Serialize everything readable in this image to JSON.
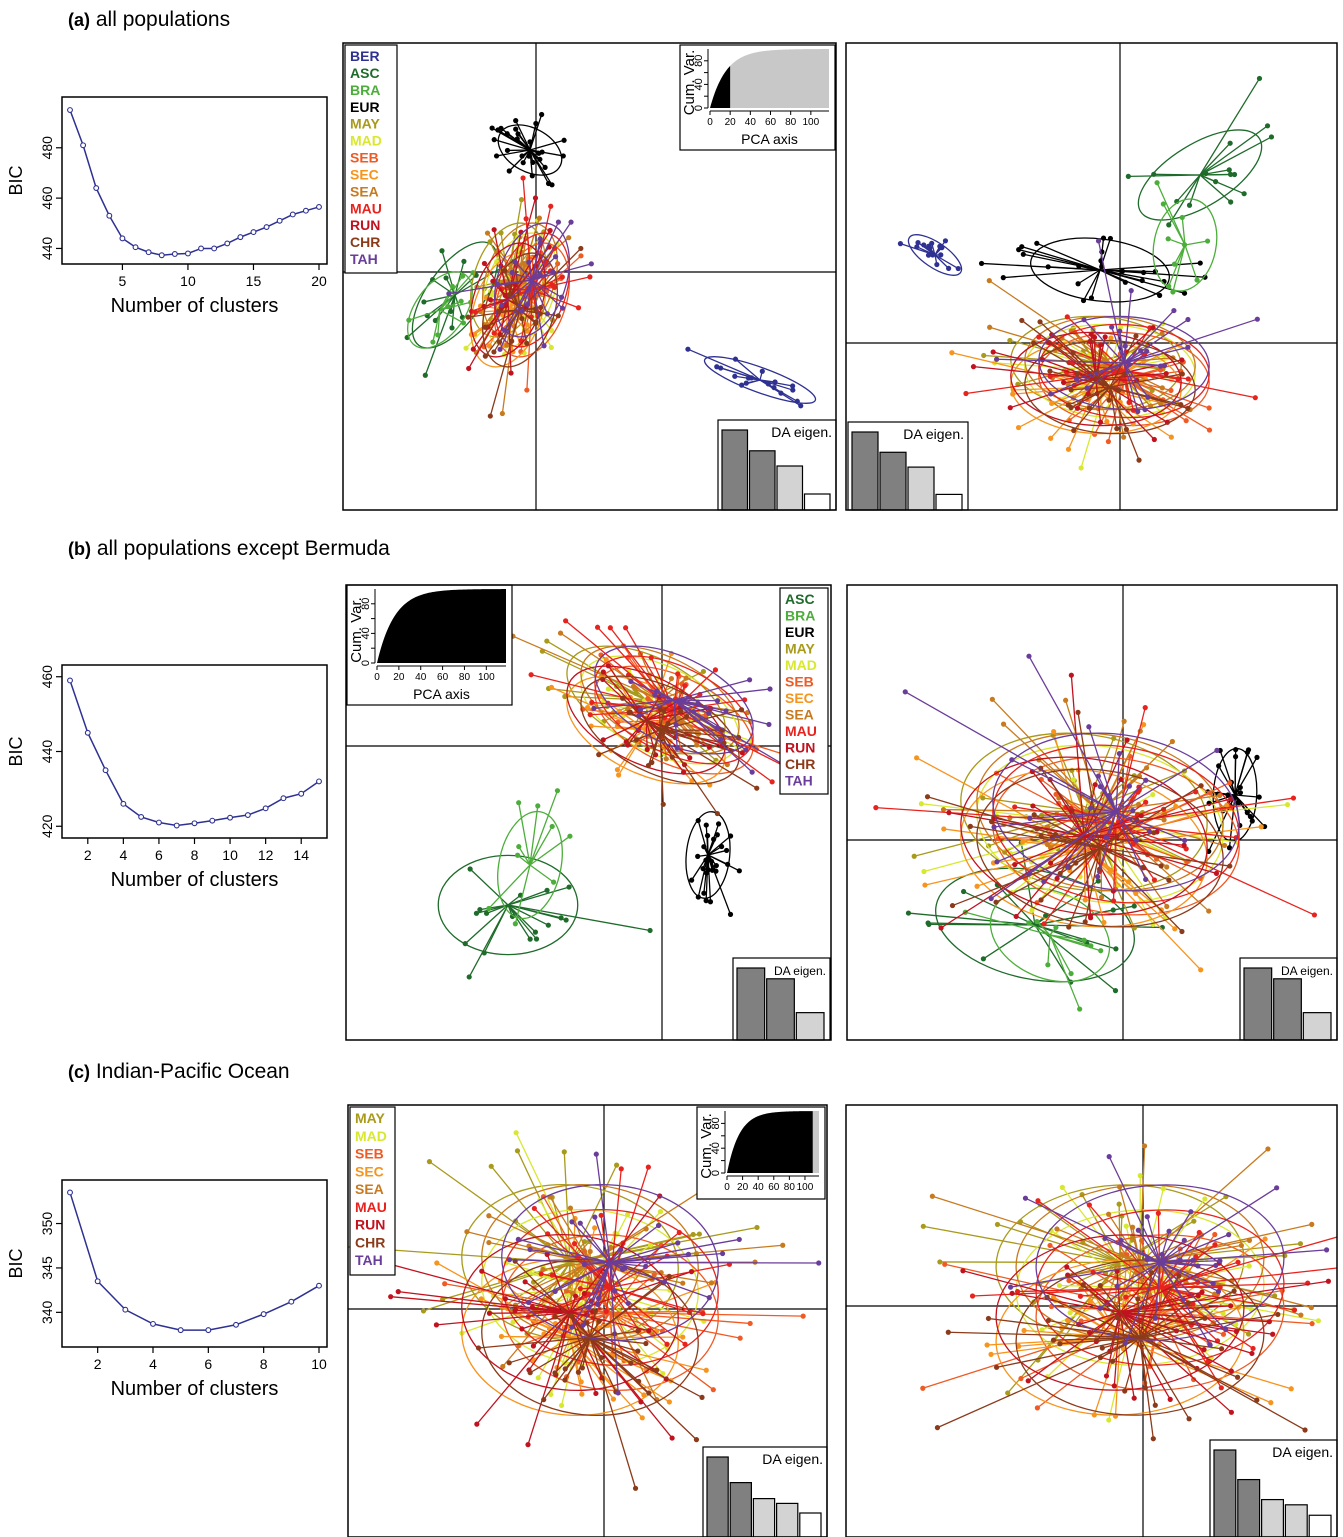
{
  "sections": [
    {
      "tag": "(a)",
      "title": "all populations",
      "bic": {
        "ylabel": "BIC",
        "xlabel": "Number of clusters",
        "xlim": [
          1,
          20
        ],
        "ylim": [
          437,
          497
        ],
        "xticks": [
          5,
          10,
          15,
          20
        ],
        "yticks": [
          440,
          460,
          480
        ],
        "x": [
          1,
          2,
          3,
          4,
          5,
          6,
          7,
          8,
          9,
          10,
          11,
          12,
          13,
          14,
          15,
          16,
          17,
          18,
          19,
          20
        ],
        "values": [
          495,
          481,
          464,
          453,
          444,
          440.5,
          438.5,
          437.3,
          437.8,
          438,
          440,
          440,
          442,
          444.5,
          446.5,
          448.5,
          451,
          453.5,
          455,
          456.5
        ]
      },
      "scatter1": {
        "legend": [
          "BER",
          "ASC",
          "BRA",
          "EUR",
          "MAY",
          "MAD",
          "SEB",
          "SEC",
          "SEA",
          "MAU",
          "RUN",
          "CHR",
          "TAH"
        ],
        "pca_inset": {
          "ylabel": "Cum. Var.",
          "xlabel": "PCA axis",
          "xticks": [
            0,
            20,
            40,
            60,
            80,
            100
          ],
          "yticks": [
            0,
            20,
            40,
            60,
            80
          ],
          "retained": 20,
          "total": 118
        },
        "da_inset": {
          "label": "DA eigen.",
          "values": [
            1.0,
            0.74,
            0.55,
            0.2
          ]
        }
      },
      "scatter2": {
        "da_inset": {
          "label": "DA eigen.",
          "values": [
            1.0,
            0.74,
            0.55,
            0.2
          ]
        }
      }
    },
    {
      "tag": "(b)",
      "title": "all populations except Bermuda",
      "bic": {
        "ylabel": "BIC",
        "xlabel": "Number of clusters",
        "xlim": [
          1,
          15
        ],
        "ylim": [
          419,
          461
        ],
        "xticks": [
          2,
          4,
          6,
          8,
          10,
          12,
          14
        ],
        "yticks": [
          420,
          440,
          460
        ],
        "x": [
          1,
          2,
          3,
          4,
          5,
          6,
          7,
          8,
          9,
          10,
          11,
          12,
          13,
          14,
          15
        ],
        "values": [
          459,
          445,
          435,
          426,
          422.5,
          421,
          420.2,
          420.8,
          421.5,
          422.3,
          423,
          424.8,
          427.5,
          428.7,
          432
        ]
      },
      "scatter1": {
        "legend": [
          "ASC",
          "BRA",
          "EUR",
          "MAY",
          "MAD",
          "SEB",
          "SEC",
          "SEA",
          "MAU",
          "RUN",
          "CHR",
          "TAH"
        ],
        "pca_inset": {
          "ylabel": "Cum. Var.",
          "xlabel": "PCA axis",
          "xticks": [
            0,
            20,
            40,
            60,
            80,
            100
          ],
          "yticks": [
            0,
            20,
            40,
            60,
            80
          ],
          "retained": 118,
          "total": 118
        },
        "da_inset": {
          "label": "DA eigen.",
          "values": [
            1.0,
            0.85,
            0.38
          ]
        }
      },
      "scatter2": {
        "da_inset": {
          "label": "DA eigen.",
          "values": [
            1.0,
            0.85,
            0.38
          ]
        }
      }
    },
    {
      "tag": "(c)",
      "title": "Indian-Pacific Ocean",
      "bic": {
        "ylabel": "BIC",
        "xlabel": "Number of clusters",
        "xlim": [
          1,
          10
        ],
        "ylim": [
          337,
          354
        ],
        "xticks": [
          2,
          4,
          6,
          8,
          10
        ],
        "yticks": [
          340,
          345,
          350
        ],
        "x": [
          1,
          2,
          3,
          4,
          5,
          6,
          7,
          8,
          9,
          10
        ],
        "values": [
          353.5,
          343.5,
          340.3,
          338.7,
          338,
          338,
          338.6,
          339.8,
          341.2,
          343
        ]
      },
      "scatter1": {
        "legend": [
          "MAY",
          "MAD",
          "SEB",
          "SEC",
          "SEA",
          "MAU",
          "RUN",
          "CHR",
          "TAH"
        ],
        "pca_inset": {
          "ylabel": "Cum. Var.",
          "xlabel": "",
          "xticks": [
            0,
            20,
            40,
            60,
            80,
            100
          ],
          "yticks": [
            0,
            20,
            40,
            60,
            80
          ],
          "retained": 110,
          "total": 118
        },
        "da_inset": {
          "label": "DA eigen.",
          "values": [
            1.0,
            0.68,
            0.48,
            0.42,
            0.3
          ]
        }
      },
      "scatter2": {
        "da_inset": {
          "label": "DA eigen.",
          "values": [
            1.0,
            0.66,
            0.43,
            0.37,
            0.25
          ]
        }
      }
    }
  ],
  "colors": {
    "BER": "#2e3192",
    "ASC": "#1e6b2a",
    "BRA": "#4cae3a",
    "EUR": "#000000",
    "MAY": "#a89a1a",
    "MAD": "#d8e830",
    "SEB": "#f05a24",
    "SEC": "#f7941d",
    "SEA": "#c87a1e",
    "MAU": "#e8231e",
    "RUN": "#c1121f",
    "CHR": "#8b3a1a",
    "TAH": "#6a3d9a",
    "bic_line": "#2e3192",
    "bar_dark": "#808080",
    "bar_light": "#d3d3d3",
    "pca_retained": "#000000",
    "pca_rest": "#c8c8c8"
  },
  "chart_data": [
    {
      "type": "line",
      "xlabel": "Number of clusters",
      "ylabel": "BIC",
      "x": [
        1,
        2,
        3,
        4,
        5,
        6,
        7,
        8,
        9,
        10,
        11,
        12,
        13,
        14,
        15,
        16,
        17,
        18,
        19,
        20
      ],
      "values": [
        495,
        481,
        464,
        453,
        444,
        440.5,
        438.5,
        437.3,
        437.8,
        438,
        440,
        440,
        442,
        444.5,
        446.5,
        448.5,
        451,
        453.5,
        455,
        456.5
      ]
    },
    {
      "type": "line",
      "xlabel": "Number of clusters",
      "ylabel": "BIC",
      "x": [
        1,
        2,
        3,
        4,
        5,
        6,
        7,
        8,
        9,
        10,
        11,
        12,
        13,
        14,
        15
      ],
      "values": [
        459,
        445,
        435,
        426,
        422.5,
        421,
        420.2,
        420.8,
        421.5,
        422.3,
        423,
        424.8,
        427.5,
        428.7,
        432
      ]
    },
    {
      "type": "line",
      "xlabel": "Number of clusters",
      "ylabel": "BIC",
      "x": [
        1,
        2,
        3,
        4,
        5,
        6,
        7,
        8,
        9,
        10
      ],
      "values": [
        353.5,
        343.5,
        340.3,
        338.7,
        338,
        338,
        338.6,
        339.8,
        341.2,
        343
      ]
    }
  ]
}
